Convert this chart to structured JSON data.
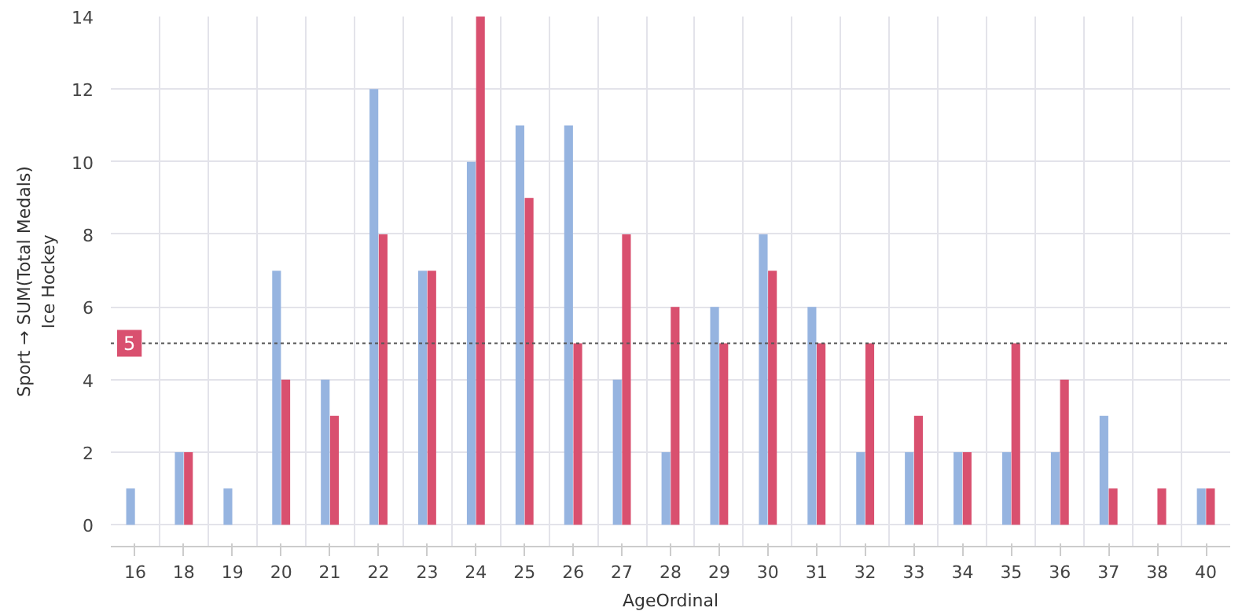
{
  "chart_data": {
    "type": "bar",
    "xlabel": "AgeOrdinal",
    "ylabel": "Sport → SUM(Total Medals)\nIce Hockey",
    "categories": [
      "16",
      "18",
      "19",
      "20",
      "21",
      "22",
      "23",
      "24",
      "25",
      "26",
      "27",
      "28",
      "29",
      "30",
      "31",
      "32",
      "33",
      "34",
      "35",
      "36",
      "37",
      "38",
      "40"
    ],
    "series": [
      {
        "color": "#96b4e0",
        "values": [
          1,
          2,
          1,
          7,
          4,
          12,
          7,
          10,
          11,
          11,
          4,
          2,
          6,
          8,
          6,
          2,
          2,
          2,
          2,
          2,
          3,
          null,
          1
        ]
      },
      {
        "color": "#d9506f",
        "values": [
          null,
          2,
          null,
          4,
          3,
          8,
          7,
          14,
          9,
          5,
          8,
          6,
          5,
          7,
          5,
          5,
          3,
          2,
          5,
          4,
          1,
          1,
          1
        ]
      }
    ],
    "ylim": [
      -0.6,
      14
    ],
    "yticks": [
      0,
      2,
      4,
      6,
      8,
      10,
      12,
      14
    ],
    "grid": true,
    "ref_lines": [
      {
        "axis": "y",
        "value": 5,
        "label": "5",
        "line_style": "dotted"
      }
    ]
  }
}
